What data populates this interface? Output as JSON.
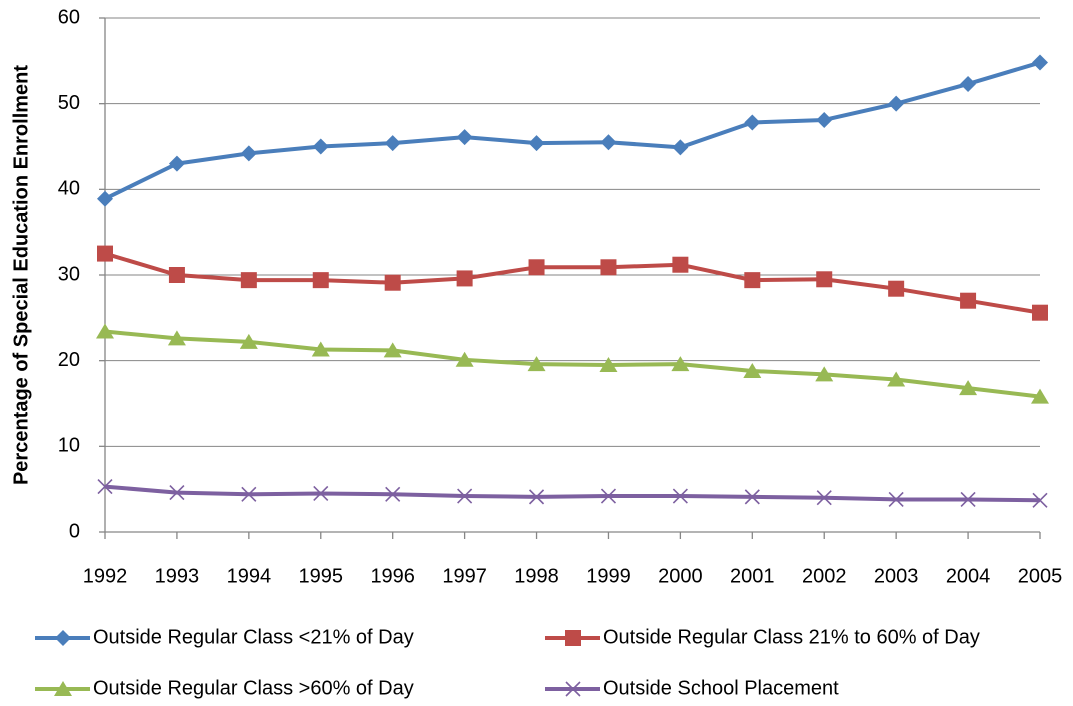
{
  "chart_data": {
    "type": "line",
    "ylabel": "Percentage of Special Education Enrollment",
    "categories": [
      "1992",
      "1993",
      "1994",
      "1995",
      "1996",
      "1997",
      "1998",
      "1999",
      "2000",
      "2001",
      "2002",
      "2003",
      "2004",
      "2005"
    ],
    "series": [
      {
        "name": "Outside Regular Class <21% of Day",
        "color": "#4a7ebb",
        "marker": "diamond",
        "values": [
          38.9,
          43.0,
          44.2,
          45.0,
          45.4,
          46.1,
          45.4,
          45.5,
          44.9,
          47.8,
          48.1,
          50.0,
          52.3,
          54.8
        ]
      },
      {
        "name": "Outside Regular Class 21% to 60% of Day",
        "color": "#be4b48",
        "marker": "square",
        "values": [
          32.5,
          30.0,
          29.4,
          29.4,
          29.1,
          29.6,
          30.9,
          30.9,
          31.2,
          29.4,
          29.5,
          28.4,
          27.0,
          25.6
        ]
      },
      {
        "name": "Outside Regular Class >60% of Day",
        "color": "#98b954",
        "marker": "triangle",
        "values": [
          23.4,
          22.6,
          22.2,
          21.3,
          21.2,
          20.1,
          19.6,
          19.5,
          19.6,
          18.8,
          18.4,
          17.8,
          16.8,
          15.8
        ]
      },
      {
        "name": "Outside School Placement",
        "color": "#7d60a0",
        "marker": "x",
        "values": [
          5.3,
          4.6,
          4.4,
          4.5,
          4.4,
          4.2,
          4.1,
          4.2,
          4.2,
          4.1,
          4.0,
          3.8,
          3.8,
          3.7
        ]
      }
    ],
    "ylim": [
      0,
      60
    ],
    "yticks": [
      0,
      10,
      20,
      30,
      40,
      50,
      60
    ],
    "grid": true
  }
}
